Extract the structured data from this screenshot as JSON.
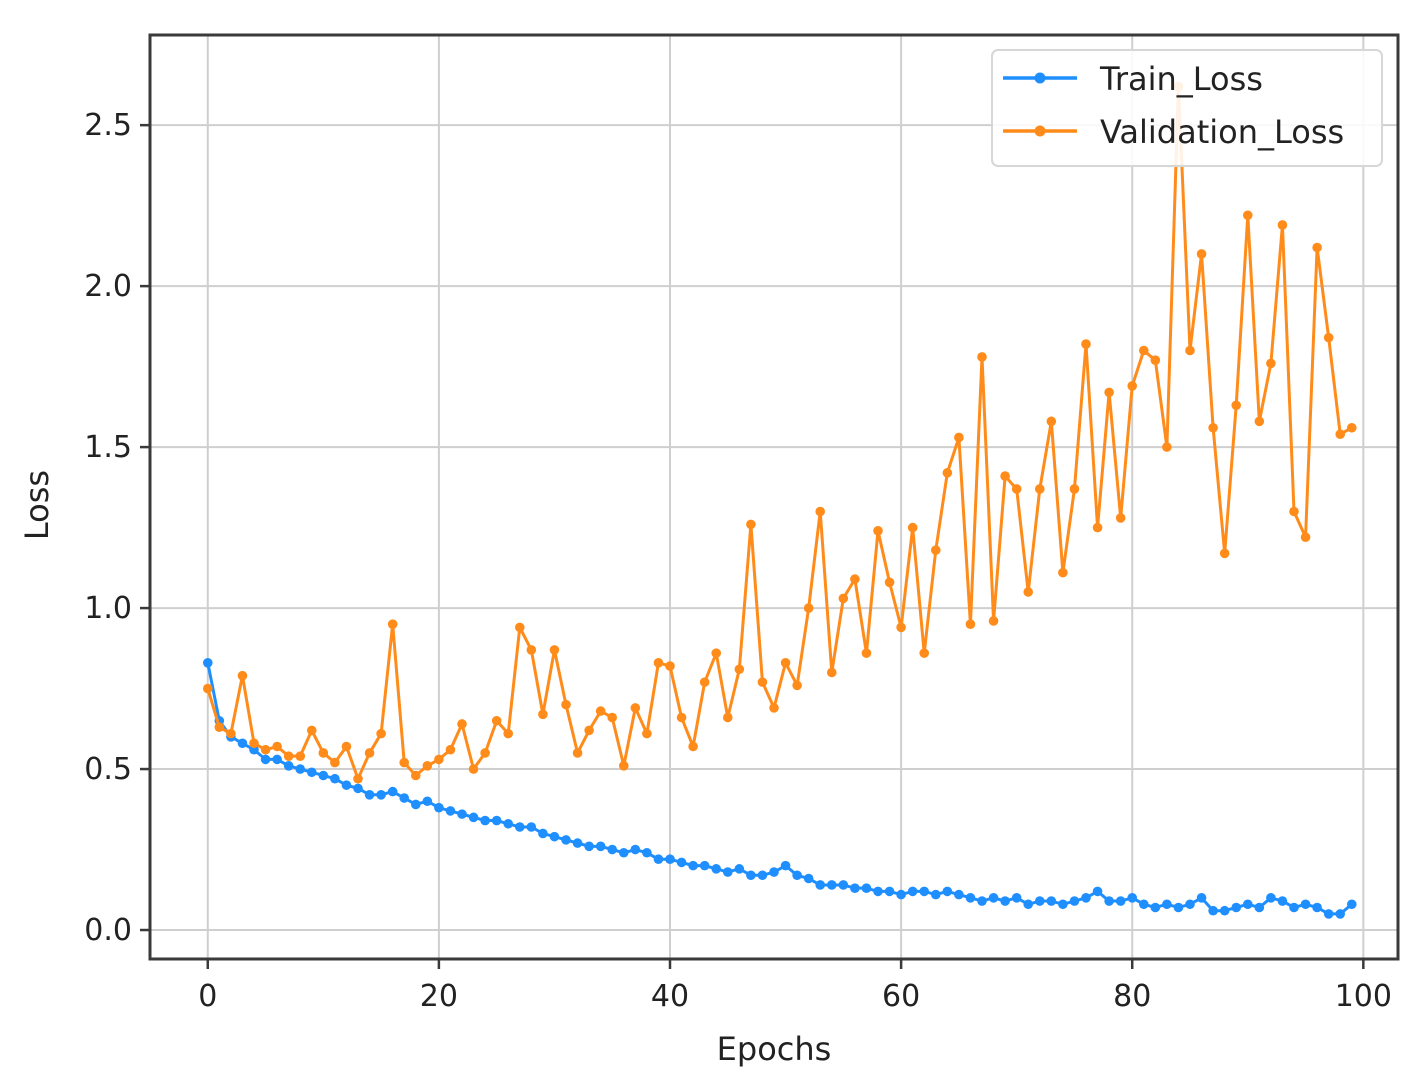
{
  "chart_data": {
    "type": "line",
    "title": "",
    "xlabel": "Epochs",
    "ylabel": "Loss",
    "xlim": [
      -5,
      103
    ],
    "ylim": [
      -0.09,
      2.78
    ],
    "x_ticks": [
      0,
      20,
      40,
      60,
      80,
      100
    ],
    "y_ticks": [
      0.0,
      0.5,
      1.0,
      1.5,
      2.0,
      2.5
    ],
    "x_tick_labels": [
      "0",
      "20",
      "40",
      "60",
      "80",
      "100"
    ],
    "y_tick_labels": [
      "0.0",
      "0.5",
      "1.0",
      "1.5",
      "2.0",
      "2.5"
    ],
    "grid": true,
    "legend_position": "top-right",
    "x": [
      0,
      1,
      2,
      3,
      4,
      5,
      6,
      7,
      8,
      9,
      10,
      11,
      12,
      13,
      14,
      15,
      16,
      17,
      18,
      19,
      20,
      21,
      22,
      23,
      24,
      25,
      26,
      27,
      28,
      29,
      30,
      31,
      32,
      33,
      34,
      35,
      36,
      37,
      38,
      39,
      40,
      41,
      42,
      43,
      44,
      45,
      46,
      47,
      48,
      49,
      50,
      51,
      52,
      53,
      54,
      55,
      56,
      57,
      58,
      59,
      60,
      61,
      62,
      63,
      64,
      65,
      66,
      67,
      68,
      69,
      70,
      71,
      72,
      73,
      74,
      75,
      76,
      77,
      78,
      79,
      80,
      81,
      82,
      83,
      84,
      85,
      86,
      87,
      88,
      89,
      90,
      91,
      92,
      93,
      94,
      95,
      96,
      97,
      98,
      99
    ],
    "series": [
      {
        "name": "Train_Loss",
        "color": "#1f8fff",
        "values": [
          0.83,
          0.65,
          0.6,
          0.58,
          0.56,
          0.53,
          0.53,
          0.51,
          0.5,
          0.49,
          0.48,
          0.47,
          0.45,
          0.44,
          0.42,
          0.42,
          0.43,
          0.41,
          0.39,
          0.4,
          0.38,
          0.37,
          0.36,
          0.35,
          0.34,
          0.34,
          0.33,
          0.32,
          0.32,
          0.3,
          0.29,
          0.28,
          0.27,
          0.26,
          0.26,
          0.25,
          0.24,
          0.25,
          0.24,
          0.22,
          0.22,
          0.21,
          0.2,
          0.2,
          0.19,
          0.18,
          0.19,
          0.17,
          0.17,
          0.18,
          0.2,
          0.17,
          0.16,
          0.14,
          0.14,
          0.14,
          0.13,
          0.13,
          0.12,
          0.12,
          0.11,
          0.12,
          0.12,
          0.11,
          0.12,
          0.11,
          0.1,
          0.09,
          0.1,
          0.09,
          0.1,
          0.08,
          0.09,
          0.09,
          0.08,
          0.09,
          0.1,
          0.12,
          0.09,
          0.09,
          0.1,
          0.08,
          0.07,
          0.08,
          0.07,
          0.08,
          0.1,
          0.06,
          0.06,
          0.07,
          0.08,
          0.07,
          0.1,
          0.09,
          0.07,
          0.08,
          0.07,
          0.05,
          0.05,
          0.08
        ]
      },
      {
        "name": "Validation_Loss",
        "color": "#ff8c1a",
        "values": [
          0.75,
          0.63,
          0.61,
          0.79,
          0.58,
          0.56,
          0.57,
          0.54,
          0.54,
          0.62,
          0.55,
          0.52,
          0.57,
          0.47,
          0.55,
          0.61,
          0.95,
          0.52,
          0.48,
          0.51,
          0.53,
          0.56,
          0.64,
          0.5,
          0.55,
          0.65,
          0.61,
          0.94,
          0.87,
          0.67,
          0.87,
          0.7,
          0.55,
          0.62,
          0.68,
          0.66,
          0.51,
          0.69,
          0.61,
          0.83,
          0.82,
          0.66,
          0.57,
          0.77,
          0.86,
          0.66,
          0.81,
          1.26,
          0.77,
          0.69,
          0.83,
          0.76,
          1.0,
          1.3,
          0.8,
          1.03,
          1.09,
          0.86,
          1.24,
          1.08,
          0.94,
          1.25,
          0.86,
          1.18,
          1.42,
          1.53,
          0.95,
          1.78,
          0.96,
          1.41,
          1.37,
          1.05,
          1.37,
          1.58,
          1.11,
          1.37,
          1.82,
          1.25,
          1.67,
          1.28,
          1.69,
          1.8,
          1.77,
          1.5,
          2.62,
          1.8,
          2.1,
          1.56,
          1.17,
          1.63,
          2.22,
          1.58,
          1.76,
          2.19,
          1.3,
          1.22,
          2.12,
          1.84,
          1.54,
          1.56
        ]
      }
    ]
  }
}
